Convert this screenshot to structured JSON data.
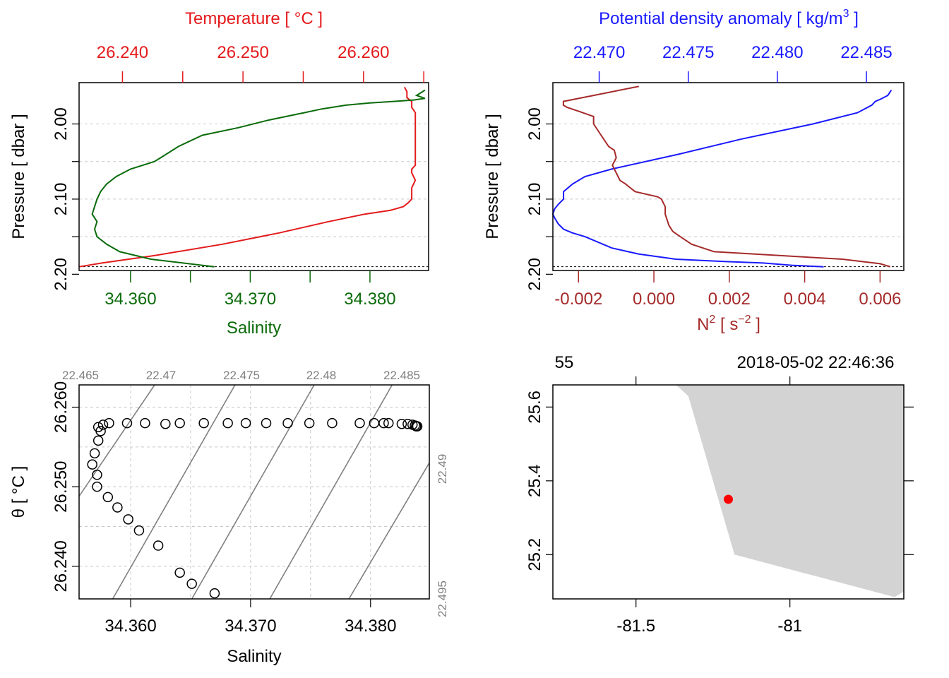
{
  "figure": "CTD summary",
  "colors": {
    "temperature": "#e41a1c",
    "salinity": "#0a6b0a",
    "density": "#1a1aff",
    "n2": "#a52a2a",
    "sigma_contour": "#808080",
    "point": "#ff0000",
    "land": "#d3d3d3"
  },
  "chart_data": [
    {
      "id": "ts-profile",
      "type": "line",
      "title_top": "Temperature [ °C ]",
      "xlabel_bottom": "Salinity",
      "ylabel": "Pressure [ dbar ]",
      "yticks": [
        "2.00",
        "2.10",
        "2.20"
      ],
      "top_ticks": [
        "26.240",
        "26.250",
        "26.260"
      ],
      "bottom_ticks": [
        "34.360",
        "34.370",
        "34.380"
      ],
      "ylim": [
        2.195,
        1.945
      ],
      "temperature_xlim": [
        26.2364,
        26.2654
      ],
      "salinity_xlim": [
        34.3557,
        34.3849
      ],
      "series": [
        {
          "name": "Temperature",
          "x": [
            26.2634,
            26.2636,
            26.2636,
            26.264,
            26.264,
            26.2643,
            26.2643,
            26.2643,
            26.2643,
            26.2643,
            26.2643,
            26.2643,
            26.2643,
            26.264,
            26.264,
            26.2643,
            26.264,
            26.264,
            26.264,
            26.2637,
            26.2633,
            26.2622,
            26.2601,
            26.2571,
            26.253,
            26.2483,
            26.2427,
            26.2383,
            26.2364
          ],
          "y": [
            1.951,
            1.957,
            1.965,
            1.97,
            1.978,
            1.985,
            1.995,
            2.005,
            2.015,
            2.025,
            2.035,
            2.045,
            2.055,
            2.06,
            2.065,
            2.075,
            2.085,
            2.095,
            2.1,
            2.105,
            2.11,
            2.115,
            2.12,
            2.13,
            2.145,
            2.16,
            2.175,
            2.185,
            2.19
          ]
        },
        {
          "name": "Salinity",
          "x": [
            34.3846,
            34.3839,
            34.3846,
            34.3837,
            34.382,
            34.38,
            34.378,
            34.376,
            34.3745,
            34.3715,
            34.369,
            34.366,
            34.364,
            34.363,
            34.362,
            34.36,
            34.3588,
            34.358,
            34.3575,
            34.3572,
            34.357,
            34.3568,
            34.3572,
            34.357,
            34.3572,
            34.358,
            34.3591,
            34.3617,
            34.367
          ],
          "y": [
            1.955,
            1.962,
            1.966,
            1.968,
            1.97,
            1.972,
            1.975,
            1.98,
            1.985,
            1.995,
            2.005,
            2.015,
            2.03,
            2.04,
            2.05,
            2.06,
            2.07,
            2.08,
            2.09,
            2.1,
            2.11,
            2.12,
            2.13,
            2.14,
            2.15,
            2.16,
            2.17,
            2.18,
            2.19
          ]
        }
      ]
    },
    {
      "id": "density-n2-profile",
      "type": "line",
      "title_top": "Potential density anomaly [ kg/m",
      "title_top_sup": "3",
      "title_top_end": " ]",
      "xlabel_bottom_main": "N",
      "xlabel_bottom_sup": "2",
      "xlabel_bottom_mid": " [ s",
      "xlabel_bottom_sup2": "−2",
      "xlabel_bottom_end": " ]",
      "ylabel": "Pressure [ dbar ]",
      "yticks": [
        "2.00",
        "2.10",
        "2.20"
      ],
      "top_ticks": [
        "22.470",
        "22.475",
        "22.480",
        "22.485"
      ],
      "bottom_ticks": [
        "-0.002",
        "0.000",
        "0.002",
        "0.004",
        "0.006"
      ],
      "ylim": [
        2.195,
        1.945
      ],
      "density_xlim": [
        22.4674,
        22.4871
      ],
      "n2_xlim": [
        -0.00268,
        0.00663
      ],
      "series": [
        {
          "name": "Potential density anomaly",
          "x": [
            22.4826,
            22.4808,
            22.4792,
            22.477,
            22.4743,
            22.4722,
            22.4707,
            22.4692,
            22.4685,
            22.468,
            22.4677,
            22.4675,
            22.4674,
            22.4675,
            22.4677,
            22.468,
            22.468,
            22.4685,
            22.4692,
            22.4707,
            22.4745,
            22.478,
            22.482,
            22.4845,
            22.4853,
            22.4855,
            22.4858,
            22.4862,
            22.4864
          ],
          "y": [
            2.19,
            2.188,
            2.185,
            2.183,
            2.18,
            2.173,
            2.165,
            2.15,
            2.145,
            2.14,
            2.133,
            2.125,
            2.12,
            2.113,
            2.107,
            2.1,
            2.09,
            2.08,
            2.07,
            2.06,
            2.04,
            2.02,
            2.0,
            1.985,
            1.975,
            1.97,
            1.967,
            1.962,
            1.955
          ]
        },
        {
          "name": "N2",
          "x": [
            0.00627,
            0.006,
            0.005,
            0.0016,
            0.001,
            0.0007,
            0.0005,
            0.0004,
            0.0003,
            0.0003,
            0.0002,
            0.0001,
            -0.0005,
            -0.00075,
            -0.0009,
            -0.001,
            -0.0011,
            -0.001,
            -0.00105,
            -0.0012,
            -0.0014,
            -0.0016,
            -0.0016,
            -0.002,
            -0.0023,
            -0.0024,
            -0.0024,
            -0.0016,
            -0.0004
          ],
          "y": [
            2.19,
            2.186,
            2.18,
            2.17,
            2.16,
            2.15,
            2.143,
            2.135,
            2.12,
            2.11,
            2.1,
            2.097,
            2.09,
            2.08,
            2.075,
            2.065,
            2.055,
            2.045,
            2.035,
            2.03,
            2.015,
            2.0,
            1.99,
            1.983,
            1.978,
            1.975,
            1.97,
            1.962,
            1.95
          ]
        }
      ]
    },
    {
      "id": "ts-diagram",
      "type": "scatter",
      "xlabel": "Salinity",
      "ylabel": "θ [ °C ]",
      "xticks": [
        "34.360",
        "34.370",
        "34.380"
      ],
      "yticks": [
        "26.240",
        "26.250",
        "26.260"
      ],
      "xlim": [
        34.3557,
        34.3849
      ],
      "ylim": [
        26.2359,
        26.2628
      ],
      "contour_labels_top": [
        "22.465",
        "22.47",
        "22.475",
        "22.48",
        "22.485"
      ],
      "contour_labels_right": [
        "22.49",
        "22.495"
      ],
      "contours": [
        {
          "label": "22.465",
          "x0": 34.3557,
          "y0": 26.2488,
          "x1": 34.362,
          "y1": 26.2628
        },
        {
          "label": "22.47",
          "x0": 34.3585,
          "y0": 26.2359,
          "x1": 34.3687,
          "y1": 26.2628
        },
        {
          "label": "22.475",
          "x0": 34.3651,
          "y0": 26.2359,
          "x1": 34.3753,
          "y1": 26.2628
        },
        {
          "label": "22.48",
          "x0": 34.3716,
          "y0": 26.2359,
          "x1": 34.3818,
          "y1": 26.2628
        },
        {
          "label": "22.485",
          "x0": 34.3782,
          "y0": 26.2359,
          "x1": 34.3849,
          "y1": 26.253
        }
      ],
      "points": {
        "x": [
          34.367,
          34.3651,
          34.3641,
          34.3623,
          34.3607,
          34.3598,
          34.3589,
          34.3581,
          34.3572,
          34.3572,
          34.3568,
          34.357,
          34.3573,
          34.3575,
          34.3577,
          34.3582,
          34.3573,
          34.3597,
          34.3612,
          34.3629,
          34.3641,
          34.3661,
          34.3681,
          34.3696,
          34.3713,
          34.3731,
          34.3749,
          34.3768,
          34.3791,
          34.3803,
          34.3811,
          34.3815,
          34.3826,
          34.3831,
          34.3835,
          34.3837,
          34.3839,
          34.3838
        ],
        "y": [
          26.2366,
          26.2378,
          26.2392,
          26.2426,
          26.2445,
          26.2459,
          26.2474,
          26.2487,
          26.25,
          26.2515,
          26.2528,
          26.2542,
          26.2558,
          26.257,
          26.2578,
          26.258,
          26.2575,
          26.258,
          26.258,
          26.2579,
          26.258,
          26.258,
          26.258,
          26.258,
          26.258,
          26.258,
          26.258,
          26.258,
          26.258,
          26.258,
          26.258,
          26.258,
          26.2579,
          26.2579,
          26.2578,
          26.2577,
          26.2576,
          26.2576
        ]
      }
    },
    {
      "id": "station-map",
      "type": "scatter",
      "xticks": [
        "-81.5",
        "-81"
      ],
      "yticks": [
        "25.2",
        "25.4",
        "25.6"
      ],
      "xlim": [
        -81.77,
        -80.63
      ],
      "ylim": [
        25.08,
        25.66
      ],
      "top_left_label": "55",
      "top_right_label": "2018-05-02 22:46:36",
      "land_polygon": {
        "lon": [
          -81.37,
          -81.33,
          -81.18,
          -80.66,
          -80.63,
          -80.63
        ],
        "lat": [
          25.66,
          25.63,
          25.2,
          25.085,
          25.1,
          25.66
        ]
      },
      "station": {
        "lon": -81.2,
        "lat": 25.35
      }
    }
  ]
}
